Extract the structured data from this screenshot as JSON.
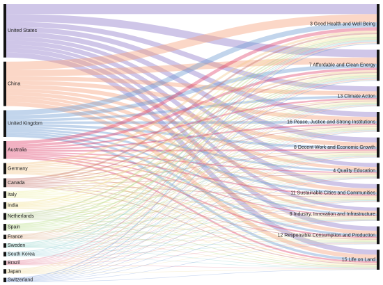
{
  "chart_data": {
    "type": "sankey",
    "sources": [
      {
        "label": "United States",
        "color": "#8c78c8",
        "value": 24
      },
      {
        "label": "China",
        "color": "#f5a07a",
        "value": 20
      },
      {
        "label": "United Kingdom",
        "color": "#6e9cd2",
        "value": 12
      },
      {
        "label": "Australia",
        "color": "#e0456e",
        "value": 8
      },
      {
        "label": "Germany",
        "color": "#f2c98c",
        "value": 5
      },
      {
        "label": "Canada",
        "color": "#c8786e",
        "value": 4
      },
      {
        "label": "Italy",
        "color": "#eef0a8",
        "value": 3
      },
      {
        "label": "India",
        "color": "#f2e296",
        "value": 3
      },
      {
        "label": "Netherlands",
        "color": "#b4ce8c",
        "value": 3
      },
      {
        "label": "Spain",
        "color": "#bce08c",
        "value": 3
      },
      {
        "label": "France",
        "color": "#e0b08a",
        "value": 2
      },
      {
        "label": "Sweden",
        "color": "#8cd2c8",
        "value": 2
      },
      {
        "label": "South Korea",
        "color": "#9ad2dc",
        "value": 2
      },
      {
        "label": "Brazil",
        "color": "#e6829a",
        "value": 2
      },
      {
        "label": "Japan",
        "color": "#f0dca0",
        "value": 2
      },
      {
        "label": "Switzerland",
        "color": "#7ea0dc",
        "value": 2
      }
    ],
    "targets": [
      {
        "label": "3 Good Health and Well Being",
        "value": 18
      },
      {
        "label": "7 Affordable and Clean Energy",
        "value": 14
      },
      {
        "label": "13 Climate Action",
        "value": 9
      },
      {
        "label": "16 Peace, Justice and Strong Institutions",
        "value": 9
      },
      {
        "label": "8 Decent Work and Economic Growth",
        "value": 9
      },
      {
        "label": "4 Quality Education",
        "value": 7
      },
      {
        "label": "11 Sustainable Cities and Communities",
        "value": 8
      },
      {
        "label": "9 Industry, Innovation and Infrastructure",
        "value": 6
      },
      {
        "label": "12 Responsible Consumption and Production",
        "value": 8
      },
      {
        "label": "15 Life on Land",
        "value": 9
      }
    ]
  }
}
